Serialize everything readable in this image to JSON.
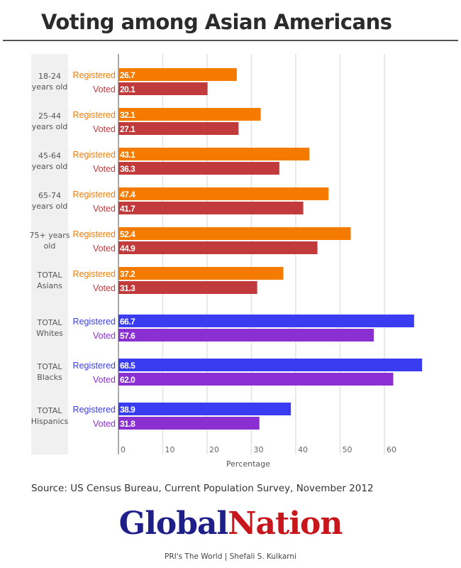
{
  "title": "Voting among Asian Americans",
  "source": "Source: US Census Bureau, Current Population Survey, November 2012",
  "logo": {
    "part1": "Global",
    "part2": "Nation"
  },
  "credit": "PRI's The World | Shefali S. Kulkarni",
  "chart_data": {
    "type": "bar",
    "orientation": "horizontal",
    "title": "Voting among Asian Americans",
    "xlabel": "Percentage",
    "xlim": [
      0,
      70
    ],
    "xticks": [
      0,
      10,
      20,
      30,
      40,
      50,
      60
    ],
    "grid": true,
    "categories": [
      [
        "18-24",
        "years old"
      ],
      [
        "25-44",
        "years old"
      ],
      [
        "45-64",
        "years old"
      ],
      [
        "65-74",
        "years old"
      ],
      [
        "75+ years",
        "old"
      ],
      [
        "TOTAL",
        "Asians"
      ],
      [
        "TOTAL",
        "Whites"
      ],
      [
        "TOTAL",
        "Blacks"
      ],
      [
        "TOTAL",
        "Hispanics"
      ]
    ],
    "series": [
      {
        "name": "Registered",
        "values": [
          26.7,
          32.1,
          43.1,
          47.4,
          52.4,
          37.2,
          66.7,
          68.5,
          38.9
        ],
        "labels": [
          "26.7",
          "32.1",
          "43.1",
          "47.4",
          "52.4",
          "37.2",
          "66.7",
          "68.5",
          "38.9"
        ]
      },
      {
        "name": "Voted",
        "values": [
          20.1,
          27.1,
          36.3,
          41.7,
          44.9,
          31.3,
          57.6,
          62.0,
          31.8
        ],
        "labels": [
          "20.1",
          "27.1",
          "36.3",
          "41.7",
          "44.9",
          "31.3",
          "57.6",
          "62.0",
          "31.8"
        ]
      }
    ],
    "colors": {
      "asian_registered": "#f47b00",
      "asian_voted": "#c13a3c",
      "other_registered": "#3a3cf2",
      "other_voted": "#8a2fd2"
    }
  }
}
